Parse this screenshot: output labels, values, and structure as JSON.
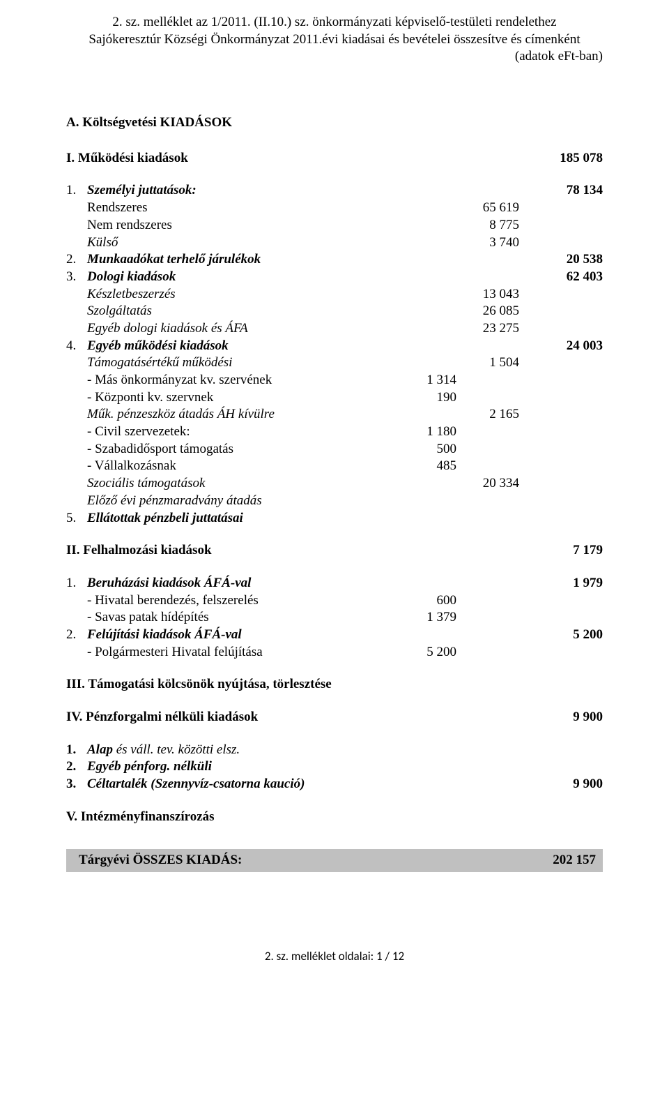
{
  "header": {
    "line1": "2. sz. melléklet az 1/2011. (II.10.) sz. önkormányzati képviselő-testületi rendelethez",
    "line2": "Sajókeresztúr Községi Önkormányzat 2011.évi kiadásai és bevételei összesítve és címenként",
    "line3": "(adatok eFt-ban)"
  },
  "secA": "A. Költségvetési KIADÁSOK",
  "I": {
    "label": "I. Működési kiadások",
    "val": "185 078"
  },
  "i1": {
    "num": "1.",
    "label": "Személyi juttatások:",
    "val": "78 134",
    "sub": [
      {
        "label": "Rendszeres",
        "b": "65 619"
      },
      {
        "label": "Nem rendszeres",
        "b": "8 775"
      },
      {
        "label": "Külső",
        "b": "3 740"
      }
    ]
  },
  "i2": {
    "num": "2.",
    "label": "Munkaadókat terhelő járulékok",
    "val": "20 538"
  },
  "i3": {
    "num": "3.",
    "label": "Dologi kiadások",
    "val": "62 403",
    "sub": [
      {
        "label": "Készletbeszerzés",
        "b": "13 043"
      },
      {
        "label": "Szolgáltatás",
        "b": "26 085"
      },
      {
        "label": "Egyéb dologi kiadások és ÁFA",
        "b": "23 275"
      }
    ]
  },
  "i4": {
    "num": "4.",
    "label": "Egyéb működési kiadások",
    "val": "24 003",
    "s1": {
      "label": "Támogatásértékű működési",
      "b": "1 504"
    },
    "s1a": {
      "label": "- Más önkormányzat kv. szervének",
      "a": "1 314"
    },
    "s1b": {
      "label": "- Központi kv. szervnek",
      "a": "190"
    },
    "s2": {
      "label": "Műk. pénzeszköz átadás ÁH kívülre",
      "b": "2 165"
    },
    "s2a": {
      "label": "- Civil szervezetek:",
      "a": "1 180"
    },
    "s2b": {
      "label": "- Szabadidősport támogatás",
      "a": "500"
    },
    "s2c": {
      "label": "- Vállalkozásnak",
      "a": "485"
    },
    "s3": {
      "label": "Szociális támogatások",
      "b": "20 334"
    },
    "s4": {
      "label": "Előző évi pénzmaradvány átadás"
    }
  },
  "i5": {
    "num": "5.",
    "label": "Ellátottak pénzbeli juttatásai"
  },
  "II": {
    "label": "II. Felhalmozási kiadások",
    "val": "7 179"
  },
  "ii1": {
    "num": "1.",
    "label": "Beruházási kiadások ÁFÁ-val",
    "val": "1 979",
    "sub": [
      {
        "label": "- Hivatal berendezés, felszerelés",
        "a": "600"
      },
      {
        "label": "- Savas patak hídépítés",
        "a": "1 379"
      }
    ]
  },
  "ii2": {
    "num": "2.",
    "label": "Felújítási kiadások ÁFÁ-val",
    "val": "5 200",
    "sub": [
      {
        "label": "- Polgármesteri Hivatal felújítása",
        "a": "5 200"
      }
    ]
  },
  "III": {
    "label": "III. Támogatási kölcsönök nyújtása, törlesztése"
  },
  "IV": {
    "label": "IV. Pénzforgalmi nélküli kiadások",
    "val": "9 900"
  },
  "iv1": {
    "num": "1.",
    "label1": "Alap",
    "label2": " és váll. tev. közötti elsz."
  },
  "iv2": {
    "num": "2.",
    "label": "Egyéb pénforg. nélküli"
  },
  "iv3": {
    "num": "3.",
    "label": "Céltartalék (Szennyvíz-csatorna kaució)",
    "val": "9 900"
  },
  "V": {
    "label": "V. Intézményfinanszírozás"
  },
  "total": {
    "label": "Tárgyévi ÖSSZES KIADÁS:",
    "val": "202 157"
  },
  "footer": "2. sz. melléklet oldalai: 1 / 12"
}
